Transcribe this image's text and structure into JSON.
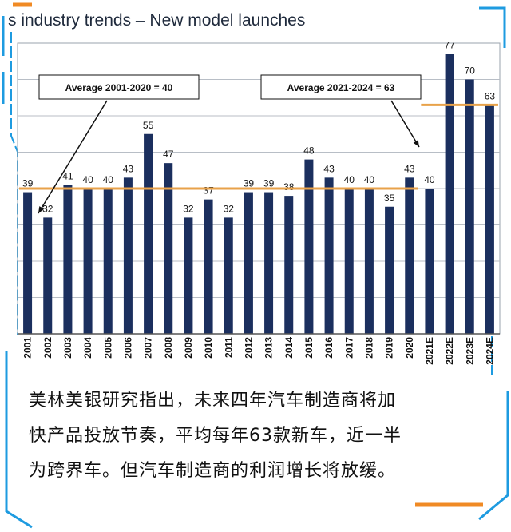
{
  "chart_data": {
    "type": "bar",
    "title": "s industry trends – New model launches",
    "categories": [
      "2001",
      "2002",
      "2003",
      "2004",
      "2005",
      "2006",
      "2007",
      "2008",
      "2009",
      "2010",
      "2011",
      "2012",
      "2013",
      "2014",
      "2015",
      "2016",
      "2017",
      "2018",
      "2019",
      "2020",
      "2021E",
      "2022E",
      "2023E",
      "2024E"
    ],
    "values": [
      39,
      32,
      41,
      40,
      40,
      43,
      55,
      47,
      32,
      37,
      32,
      39,
      39,
      38,
      48,
      43,
      40,
      40,
      35,
      43,
      40,
      77,
      70,
      63
    ],
    "ylim": [
      0,
      80
    ],
    "grid": true,
    "bar_color": "#1b2f5e",
    "average_line_color": "#e8a24a",
    "annotations": [
      {
        "text": "Average 2001-2020 = 40",
        "value": 40,
        "from": "2001",
        "to": "2020"
      },
      {
        "text": "Average 2021-2024 = 63",
        "value": 63,
        "from": "2021E",
        "to": "2024E"
      }
    ]
  },
  "caption": [
    "美林美银研究指出，未来四年汽车制造商将加",
    "快产品投放节奏，平均每年63款新车，近一半",
    "为跨界车。但汽车制造商的利润增长将放缓。"
  ],
  "accent_color": "#1e9be0"
}
